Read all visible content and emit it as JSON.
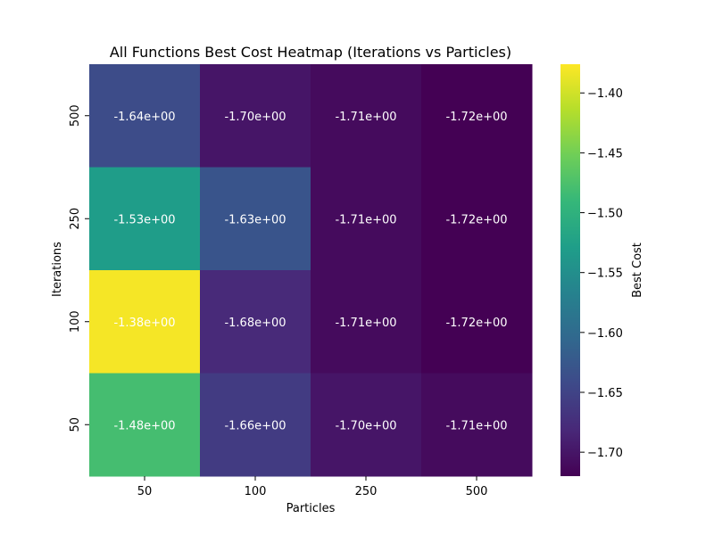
{
  "chart_data": {
    "type": "heatmap",
    "title": "All Functions Best Cost Heatmap (Iterations vs Particles)",
    "xlabel": "Particles",
    "ylabel": "Iterations",
    "x_categories": [
      "50",
      "100",
      "250",
      "500"
    ],
    "y_categories": [
      "500",
      "250",
      "100",
      "50"
    ],
    "values": [
      [
        -1.64,
        -1.7,
        -1.71,
        -1.72
      ],
      [
        -1.53,
        -1.63,
        -1.71,
        -1.72
      ],
      [
        -1.38,
        -1.68,
        -1.71,
        -1.72
      ],
      [
        -1.48,
        -1.66,
        -1.7,
        -1.71
      ]
    ],
    "cell_labels": [
      [
        "-1.64e+00",
        "-1.70e+00",
        "-1.71e+00",
        "-1.72e+00"
      ],
      [
        "-1.53e+00",
        "-1.63e+00",
        "-1.71e+00",
        "-1.72e+00"
      ],
      [
        "-1.38e+00",
        "-1.68e+00",
        "-1.71e+00",
        "-1.72e+00"
      ],
      [
        "-1.48e+00",
        "-1.66e+00",
        "-1.70e+00",
        "-1.71e+00"
      ]
    ],
    "colormap": "viridis",
    "color_range": [
      -1.72,
      -1.376
    ],
    "colorbar": {
      "label": "Best Cost",
      "ticks": [
        -1.4,
        -1.45,
        -1.5,
        -1.55,
        -1.6,
        -1.65,
        -1.7
      ],
      "tick_labels": [
        "−1.40",
        "−1.45",
        "−1.50",
        "−1.55",
        "−1.60",
        "−1.65",
        "−1.70"
      ]
    },
    "grid": false,
    "colors": {
      "viridis_stops": [
        "#440154",
        "#482878",
        "#3e4989",
        "#31688e",
        "#26828e",
        "#1f9e89",
        "#35b779",
        "#6ece58",
        "#b5de2b",
        "#fde725"
      ],
      "text_on_cell": "#ffffff"
    }
  }
}
